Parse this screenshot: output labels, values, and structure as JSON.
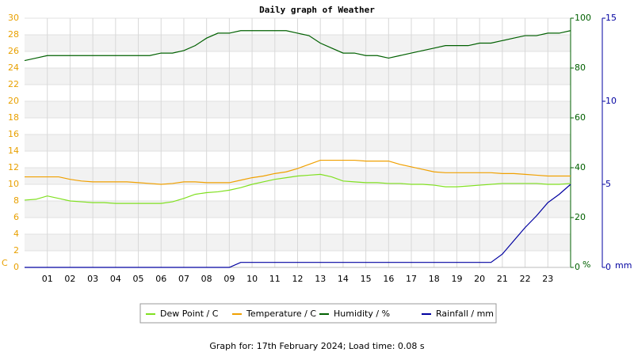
{
  "chart_data": {
    "type": "line",
    "title": "Daily graph of Weather",
    "footer": "Graph for: 17th February 2024; Load time: 0.08 s",
    "y_label": "C",
    "y2_label": "%",
    "y3_label": "mm",
    "x": [
      0,
      0.5,
      1,
      1.5,
      2,
      2.5,
      3,
      3.5,
      4,
      4.5,
      5,
      5.5,
      6,
      6.5,
      7,
      7.5,
      8,
      8.5,
      9,
      9.5,
      10,
      10.5,
      11,
      11.5,
      12,
      12.5,
      13,
      13.5,
      14,
      14.5,
      15,
      15.5,
      16,
      16.5,
      17,
      17.5,
      18,
      18.5,
      19,
      19.5,
      20,
      20.5,
      21,
      21.5,
      22,
      22.5,
      23,
      23.5,
      24
    ],
    "xlim": [
      0,
      24
    ],
    "xticks": [
      {
        "value": 1,
        "label": "01"
      },
      {
        "value": 2,
        "label": "02"
      },
      {
        "value": 3,
        "label": "03"
      },
      {
        "value": 4,
        "label": "04"
      },
      {
        "value": 5,
        "label": "05"
      },
      {
        "value": 6,
        "label": "06"
      },
      {
        "value": 7,
        "label": "07"
      },
      {
        "value": 8,
        "label": "08"
      },
      {
        "value": 9,
        "label": "09"
      },
      10,
      11,
      12,
      13,
      14,
      15,
      16,
      17,
      18,
      19,
      20,
      21,
      22,
      23
    ],
    "ylim": [
      0,
      30
    ],
    "yticks": [
      0,
      2,
      4,
      6,
      8,
      10,
      12,
      14,
      16,
      18,
      20,
      22,
      24,
      26,
      28,
      30
    ],
    "y2lim": [
      0,
      100
    ],
    "y2ticks": [
      0,
      20,
      40,
      60,
      80,
      100
    ],
    "y3lim": [
      0,
      15
    ],
    "y3ticks": [
      0,
      5,
      10,
      15
    ],
    "grid": true,
    "axis_colors": {
      "y": "#e8a000",
      "y2": "#006000",
      "y3": "#0000a0"
    },
    "series": [
      {
        "name": "Dew Point / C",
        "color": "#80e020",
        "values": [
          8.1,
          8.2,
          8.6,
          8.3,
          8.0,
          7.9,
          7.8,
          7.8,
          7.7,
          7.7,
          7.7,
          7.7,
          7.7,
          7.9,
          8.3,
          8.8,
          9.0,
          9.1,
          9.3,
          9.6,
          10.0,
          10.3,
          10.6,
          10.8,
          11.0,
          11.1,
          11.2,
          10.9,
          10.4,
          10.3,
          10.2,
          10.2,
          10.1,
          10.1,
          10.0,
          10.0,
          9.9,
          9.7,
          9.7,
          9.8,
          9.9,
          10.0,
          10.1,
          10.1,
          10.1,
          10.1,
          10.0,
          10.0,
          10.1
        ]
      },
      {
        "name": "Temperature / C",
        "color": "#f0a000",
        "values": [
          10.9,
          10.9,
          10.9,
          10.9,
          10.6,
          10.4,
          10.3,
          10.3,
          10.3,
          10.3,
          10.2,
          10.1,
          10.0,
          10.1,
          10.3,
          10.3,
          10.2,
          10.2,
          10.2,
          10.5,
          10.8,
          11.0,
          11.3,
          11.5,
          11.9,
          12.4,
          12.9,
          12.9,
          12.9,
          12.9,
          12.8,
          12.8,
          12.8,
          12.4,
          12.1,
          11.8,
          11.5,
          11.4,
          11.4,
          11.4,
          11.4,
          11.4,
          11.3,
          11.3,
          11.2,
          11.1,
          11.0,
          11.0,
          11.0
        ]
      },
      {
        "name": "Humidity / %",
        "color": "#006000",
        "axis": "y2",
        "values": [
          83,
          84,
          85,
          85,
          85,
          85,
          85,
          85,
          85,
          85,
          85,
          85,
          86,
          86,
          87,
          89,
          92,
          94,
          94,
          95,
          95,
          95,
          95,
          95,
          94,
          93,
          90,
          88,
          86,
          86,
          85,
          85,
          84,
          85,
          86,
          87,
          88,
          89,
          89,
          89,
          90,
          90,
          91,
          92,
          93,
          93,
          94,
          94,
          95
        ]
      },
      {
        "name": "Rainfall / mm",
        "color": "#0000a0",
        "axis": "y3",
        "values": [
          0,
          0,
          0,
          0,
          0,
          0,
          0,
          0,
          0,
          0,
          0,
          0,
          0,
          0,
          0,
          0,
          0,
          0,
          0,
          0.3,
          0.3,
          0.3,
          0.3,
          0.3,
          0.3,
          0.3,
          0.3,
          0.3,
          0.3,
          0.3,
          0.3,
          0.3,
          0.3,
          0.3,
          0.3,
          0.3,
          0.3,
          0.3,
          0.3,
          0.3,
          0.3,
          0.3,
          0.8,
          1.6,
          2.4,
          3.1,
          3.9,
          4.4,
          5.0
        ]
      }
    ]
  }
}
